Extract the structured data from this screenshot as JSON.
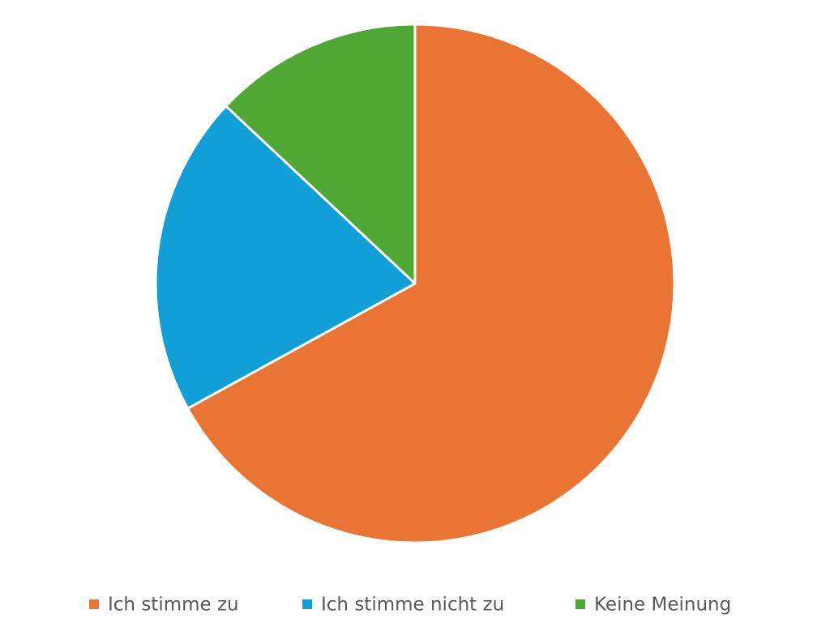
{
  "chart_data": {
    "type": "pie",
    "categories": [
      "Ich stimme zu",
      "Ich stimme nicht zu",
      "Keine Meinung"
    ],
    "values": [
      67,
      20,
      13
    ],
    "colors": [
      "#e97434",
      "#109fd7",
      "#4ea833"
    ]
  }
}
